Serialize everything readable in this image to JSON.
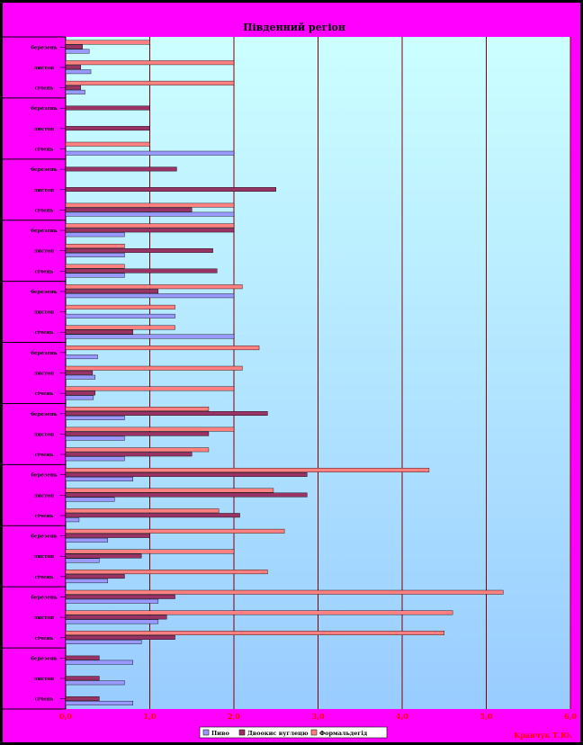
{
  "chart_data": {
    "type": "bar",
    "orientation": "horizontal",
    "title": "Південний регіон",
    "credit": "Кравчук Т.Ю.",
    "xlim": [
      0,
      6
    ],
    "x_ticks": [
      "0,0",
      "1,0",
      "2,0",
      "3,0",
      "4,0",
      "5,0",
      "6,0"
    ],
    "grid": true,
    "legend_position": "bottom",
    "colors": {
      "plot_bg_top": "#ccffff",
      "plot_bg_bottom": "#99ccff",
      "frame": "#ff00ff",
      "grid": "#800000",
      "axis_text": "#ff0000"
    },
    "groups": [
      {
        "label": "",
        "categories": [
          "березень",
          "листоп",
          "січень"
        ]
      },
      {
        "label": "",
        "categories": [
          "березень",
          "листоп",
          "січень"
        ]
      },
      {
        "label": "",
        "categories": [
          "березень",
          "листоп",
          "січень"
        ]
      },
      {
        "label": "",
        "categories": [
          "березень",
          "листоп",
          "січень"
        ]
      },
      {
        "label": "",
        "categories": [
          "березень",
          "листоп",
          "січень"
        ]
      },
      {
        "label": "",
        "categories": [
          "березень",
          "листоп",
          "січень"
        ]
      },
      {
        "label": "",
        "categories": [
          "березень",
          "листоп",
          "січень"
        ]
      },
      {
        "label": "",
        "categories": [
          "березень",
          "листоп",
          "січень"
        ]
      },
      {
        "label": "",
        "categories": [
          "березень",
          "листоп",
          "січень"
        ]
      },
      {
        "label": "",
        "categories": [
          "березень",
          "листоп",
          "січень"
        ]
      },
      {
        "label": "",
        "categories": [
          "березень",
          "листоп",
          "січень"
        ]
      }
    ],
    "series": [
      {
        "name": "Пиво",
        "color": "#9999ff",
        "values": [
          0.28,
          0.3,
          0.23,
          0,
          0,
          2.0,
          0,
          0,
          2.0,
          0.7,
          0.7,
          0.7,
          2.0,
          1.3,
          2.0,
          0.38,
          0.35,
          0.33,
          0.7,
          0.7,
          0.7,
          0.8,
          0.58,
          0.16,
          0.5,
          0.4,
          0.5,
          1.1,
          1.1,
          0.9,
          0.8,
          0.7,
          0.8
        ]
      },
      {
        "name": "Двоокис вуглецю",
        "color": "#993366",
        "values": [
          0.2,
          0.18,
          0.18,
          1.0,
          1.0,
          0,
          1.32,
          2.5,
          1.5,
          2.0,
          1.75,
          1.8,
          1.1,
          0,
          0.8,
          0,
          0.32,
          0.35,
          2.4,
          1.7,
          1.5,
          2.87,
          2.87,
          2.07,
          1.0,
          0.9,
          0.7,
          1.3,
          1.2,
          1.3,
          0.4,
          0.4,
          0.4
        ]
      },
      {
        "name": "Формальдегід",
        "color": "#ff8080",
        "values": [
          1.0,
          2.0,
          2.0,
          0,
          0,
          1.0,
          0,
          0,
          2.0,
          2.0,
          0.7,
          0.7,
          2.1,
          1.3,
          1.3,
          2.3,
          2.1,
          2.0,
          1.7,
          2.0,
          1.7,
          4.32,
          2.47,
          1.82,
          2.6,
          2.0,
          2.4,
          5.2,
          4.6,
          4.5,
          0,
          0,
          0
        ]
      }
    ]
  }
}
